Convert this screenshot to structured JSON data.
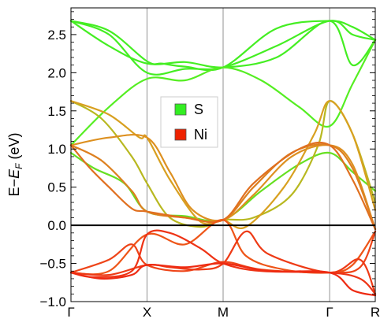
{
  "chart_data": {
    "type": "line",
    "title": "",
    "xlabel": "",
    "ylabel_main": "E−",
    "ylabel_italic": "E",
    "ylabel_sub": "F",
    "ylabel_unit": " (eV)",
    "ylim": [
      -1.0,
      2.85
    ],
    "xlim": [
      0,
      4
    ],
    "grid": false,
    "fermi_level": 0.0,
    "yticks": [
      {
        "value": -1.0,
        "label": "−1.0"
      },
      {
        "value": -0.5,
        "label": "−0.5"
      },
      {
        "value": 0.0,
        "label": "0.0"
      },
      {
        "value": 0.5,
        "label": "0.5"
      },
      {
        "value": 1.0,
        "label": "1.0"
      },
      {
        "value": 1.5,
        "label": "1.5"
      },
      {
        "value": 2.0,
        "label": "2.0"
      },
      {
        "value": 2.5,
        "label": "2.5"
      }
    ],
    "kpoints": [
      {
        "label": "Γ",
        "x": 0
      },
      {
        "label": "X",
        "x": 1
      },
      {
        "label": "M",
        "x": 2
      },
      {
        "label": "Γ",
        "x": 3.4
      },
      {
        "label": "R",
        "x": 4
      }
    ],
    "legend": {
      "placement": "center",
      "entries": [
        {
          "label": "S",
          "color": "#33ee22"
        },
        {
          "label": "Ni",
          "color": "#ee2200"
        }
      ]
    },
    "bands": [
      {
        "color": "#44ee22",
        "points": [
          [
            0,
            2.68
          ],
          [
            0.5,
            2.5
          ],
          [
            1,
            2.0
          ],
          [
            1.5,
            2.05
          ],
          [
            2,
            2.07
          ],
          [
            2.7,
            2.35
          ],
          [
            3.4,
            2.68
          ],
          [
            3.7,
            2.5
          ],
          [
            4,
            2.43
          ]
        ]
      },
      {
        "color": "#44ee22",
        "points": [
          [
            0,
            2.68
          ],
          [
            0.5,
            2.35
          ],
          [
            1,
            2.12
          ],
          [
            1.5,
            2.14
          ],
          [
            2,
            2.07
          ],
          [
            2.7,
            2.2
          ],
          [
            3.4,
            2.68
          ],
          [
            3.7,
            2.1
          ],
          [
            4,
            2.43
          ]
        ]
      },
      {
        "color": "#44ee22",
        "points": [
          [
            0,
            2.68
          ],
          [
            0.5,
            2.55
          ],
          [
            1,
            2.15
          ],
          [
            1.2,
            2.12
          ],
          [
            1.5,
            2.08
          ],
          [
            2,
            2.07
          ],
          [
            2.7,
            2.58
          ],
          [
            3.4,
            2.68
          ],
          [
            3.7,
            2.6
          ],
          [
            4,
            2.43
          ]
        ]
      },
      {
        "color": "#55ee22",
        "points": [
          [
            0,
            1.05
          ],
          [
            0.5,
            1.55
          ],
          [
            1,
            1.92
          ],
          [
            1.5,
            1.9
          ],
          [
            2,
            2.07
          ],
          [
            2.5,
            1.9
          ],
          [
            3.0,
            1.55
          ],
          [
            3.4,
            1.3
          ],
          [
            3.7,
            1.85
          ],
          [
            4,
            2.43
          ]
        ]
      },
      {
        "color": "#66e022",
        "points": [
          [
            0,
            0.95
          ],
          [
            0.3,
            0.75
          ],
          [
            0.7,
            0.55
          ],
          [
            1,
            0.18
          ],
          [
            1.5,
            0.12
          ],
          [
            2,
            0.07
          ],
          [
            2.5,
            0.45
          ],
          [
            3.0,
            0.8
          ],
          [
            3.4,
            0.95
          ],
          [
            3.7,
            0.7
          ],
          [
            4,
            0.45
          ]
        ]
      },
      {
        "color": "#b8b820",
        "points": [
          [
            0,
            1.63
          ],
          [
            0.4,
            1.4
          ],
          [
            0.8,
            0.9
          ],
          [
            1,
            0.55
          ],
          [
            1.3,
            0.1
          ],
          [
            1.7,
            -0.02
          ],
          [
            2,
            0.07
          ],
          [
            2.4,
            0.1
          ],
          [
            2.9,
            0.4
          ],
          [
            3.25,
            1.05
          ],
          [
            3.4,
            1.63
          ],
          [
            3.7,
            1.2
          ],
          [
            4,
            0.3
          ]
        ]
      },
      {
        "color": "#d8a020",
        "points": [
          [
            0,
            1.63
          ],
          [
            0.5,
            1.45
          ],
          [
            0.9,
            1.15
          ],
          [
            1,
            1.15
          ],
          [
            1.3,
            0.6
          ],
          [
            1.7,
            0.05
          ],
          [
            2,
            0.07
          ],
          [
            2.3,
            -0.02
          ],
          [
            2.8,
            0.5
          ],
          [
            3.2,
            1.2
          ],
          [
            3.4,
            1.63
          ],
          [
            3.7,
            1.2
          ],
          [
            4,
            0.2
          ]
        ]
      },
      {
        "color": "#dd9020",
        "points": [
          [
            0,
            1.05
          ],
          [
            0.5,
            1.15
          ],
          [
            1,
            1.15
          ],
          [
            1.3,
            0.7
          ],
          [
            1.6,
            0.2
          ],
          [
            2,
            0.07
          ],
          [
            2.4,
            0.4
          ],
          [
            2.9,
            0.9
          ],
          [
            3.4,
            1.05
          ],
          [
            3.7,
            0.8
          ],
          [
            4,
            -0.05
          ]
        ]
      },
      {
        "color": "#dd8020",
        "points": [
          [
            0,
            1.05
          ],
          [
            0.4,
            0.85
          ],
          [
            0.8,
            0.45
          ],
          [
            1,
            0.18
          ],
          [
            1.5,
            0.1
          ],
          [
            2,
            0.07
          ],
          [
            2.4,
            0.5
          ],
          [
            2.9,
            0.95
          ],
          [
            3.4,
            1.05
          ],
          [
            3.7,
            0.75
          ],
          [
            4,
            -0.05
          ]
        ]
      },
      {
        "color": "#e07020",
        "points": [
          [
            0,
            1.05
          ],
          [
            0.25,
            0.75
          ],
          [
            0.5,
            0.5
          ],
          [
            0.8,
            0.22
          ],
          [
            1,
            0.18
          ],
          [
            1.5,
            0.1
          ],
          [
            2,
            0.07
          ],
          [
            2.4,
            0.55
          ],
          [
            3,
            1.0
          ],
          [
            3.4,
            1.05
          ],
          [
            3.7,
            0.6
          ],
          [
            4,
            -0.05
          ]
        ]
      },
      {
        "color": "#ee5518",
        "points": [
          [
            0,
            -0.62
          ],
          [
            0.5,
            -0.6
          ],
          [
            1,
            -0.12
          ],
          [
            1.5,
            -0.25
          ],
          [
            2,
            0.07
          ],
          [
            2.3,
            -0.4
          ],
          [
            2.8,
            -0.58
          ],
          [
            3.4,
            -0.62
          ],
          [
            3.7,
            -0.52
          ],
          [
            4,
            -0.08
          ]
        ]
      },
      {
        "color": "#ee4418",
        "points": [
          [
            0,
            -0.62
          ],
          [
            0.5,
            -0.45
          ],
          [
            0.8,
            -0.25
          ],
          [
            1,
            -0.52
          ],
          [
            1.5,
            -0.6
          ],
          [
            2,
            -0.48
          ],
          [
            2.5,
            -0.58
          ],
          [
            3.4,
            -0.62
          ],
          [
            3.8,
            -0.55
          ],
          [
            4,
            -0.08
          ]
        ]
      },
      {
        "color": "#ee3a15",
        "points": [
          [
            0,
            -0.62
          ],
          [
            0.5,
            -0.65
          ],
          [
            1,
            -0.52
          ],
          [
            1.3,
            -0.55
          ],
          [
            1.7,
            -0.58
          ],
          [
            2,
            -0.5
          ],
          [
            2.3,
            -0.08
          ],
          [
            2.6,
            -0.38
          ],
          [
            3.4,
            -0.62
          ],
          [
            3.8,
            -0.45
          ],
          [
            4,
            -0.9
          ]
        ]
      },
      {
        "color": "#ee3315",
        "points": [
          [
            0,
            -0.62
          ],
          [
            0.3,
            -0.68
          ],
          [
            0.8,
            -0.6
          ],
          [
            1,
            -0.12
          ],
          [
            1.3,
            -0.1
          ],
          [
            1.7,
            -0.3
          ],
          [
            2,
            -0.5
          ],
          [
            2.5,
            -0.6
          ],
          [
            3.4,
            -0.62
          ],
          [
            3.8,
            -0.7
          ],
          [
            4,
            -0.9
          ]
        ]
      },
      {
        "color": "#ee2a12",
        "points": [
          [
            0,
            -0.62
          ],
          [
            0.4,
            -0.7
          ],
          [
            0.8,
            -0.65
          ],
          [
            1,
            -0.52
          ],
          [
            1.5,
            -0.55
          ],
          [
            2,
            -0.5
          ],
          [
            2.6,
            -0.6
          ],
          [
            3.4,
            -0.62
          ],
          [
            3.7,
            -0.85
          ],
          [
            4,
            -0.92
          ]
        ]
      }
    ]
  }
}
